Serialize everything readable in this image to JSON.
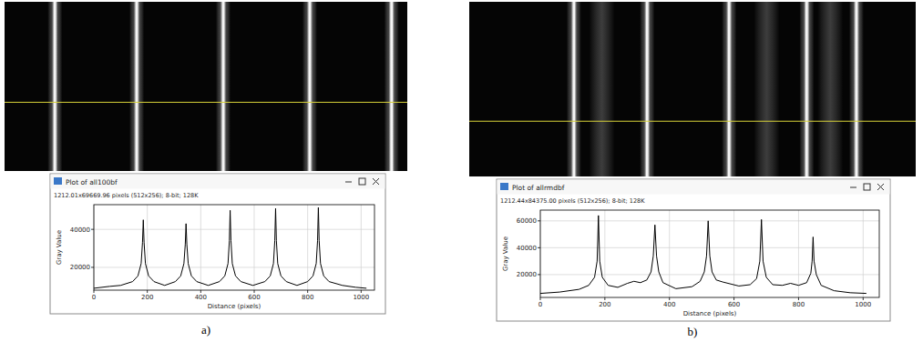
{
  "chart_data": [
    {
      "type": "line",
      "title": "Plot of all100bf",
      "subtitle": "1212.01x69669.96 pixels (512x256); 8-bit; 128K",
      "panel_label": "a)",
      "x_label": "Distance (pixels)",
      "y_label": "Gray Value",
      "xlim": [
        0,
        1050
      ],
      "xticks": [
        0,
        200,
        400,
        600,
        800,
        1000
      ],
      "ylim": [
        8000,
        53000
      ],
      "yticks": [
        20000,
        40000
      ],
      "grid": true,
      "color": "#000000",
      "x": [
        0,
        60,
        100,
        145,
        165,
        177,
        182,
        185,
        188,
        193,
        205,
        225,
        265,
        305,
        325,
        337,
        342,
        345,
        348,
        353,
        365,
        385,
        428,
        470,
        490,
        502,
        507,
        510,
        513,
        518,
        530,
        550,
        595,
        640,
        660,
        672,
        677,
        680,
        683,
        688,
        700,
        720,
        760,
        800,
        820,
        832,
        837,
        840,
        843,
        848,
        860,
        880,
        930,
        980,
        1020
      ],
      "values": [
        9000,
        10000,
        10500,
        12500,
        15500,
        22000,
        33000,
        45000,
        33000,
        22000,
        15500,
        12500,
        10500,
        12500,
        15500,
        22000,
        32000,
        43000,
        32000,
        22000,
        15500,
        12500,
        10500,
        12500,
        15500,
        22000,
        34000,
        50000,
        34000,
        22000,
        15500,
        12500,
        10500,
        12500,
        15500,
        22000,
        34000,
        51000,
        34000,
        22000,
        15500,
        12500,
        10500,
        12500,
        15500,
        22000,
        34000,
        51500,
        34000,
        22000,
        15500,
        12500,
        10500,
        9500,
        9000
      ],
      "image": {
        "xlim": [
          0,
          512
        ],
        "ylim": [
          0,
          256
        ],
        "fringes": [
          64,
          168,
          278,
          388,
          492
        ],
        "profile_row": 152
      }
    },
    {
      "type": "line",
      "title": "Plot of allrmdbf",
      "subtitle": "1212.44x84375.00 pixels (512x256); 8-bit; 128K",
      "panel_label": "b)",
      "x_label": "Distance (pixels)",
      "y_label": "Gray Value",
      "xlim": [
        0,
        1050
      ],
      "xticks": [
        0,
        200,
        400,
        600,
        800,
        1000
      ],
      "ylim": [
        3000,
        68000
      ],
      "yticks": [
        20000,
        40000,
        60000
      ],
      "grid": true,
      "color": "#000000",
      "x": [
        0,
        60,
        120,
        150,
        168,
        176,
        180,
        184,
        192,
        210,
        240,
        270,
        290,
        310,
        330,
        343,
        350,
        355,
        360,
        367,
        380,
        420,
        470,
        495,
        508,
        515,
        520,
        525,
        532,
        545,
        565,
        590,
        615,
        650,
        670,
        680,
        685,
        690,
        700,
        720,
        750,
        775,
        800,
        825,
        838,
        842,
        845,
        848,
        855,
        870,
        910,
        960,
        1010
      ],
      "values": [
        6000,
        7000,
        9000,
        12000,
        18000,
        30000,
        64000,
        30000,
        18000,
        12000,
        10500,
        13500,
        15000,
        14000,
        16000,
        22000,
        34000,
        57000,
        34000,
        22000,
        14000,
        9500,
        11000,
        15000,
        22000,
        34000,
        60000,
        34000,
        22000,
        16000,
        14500,
        13000,
        11500,
        12500,
        17000,
        30000,
        61000,
        30000,
        18000,
        12500,
        12000,
        13500,
        12000,
        14000,
        21000,
        30000,
        48000,
        30000,
        20000,
        12000,
        8000,
        6500,
        6000
      ],
      "image": {
        "xlim": [
          0,
          512
        ],
        "ylim": [
          0,
          256
        ],
        "fringes": [
          120,
          204,
          298,
          387,
          444
        ],
        "faint_fringes": [
          152,
          341,
          414
        ],
        "profile_row": 175
      }
    }
  ]
}
